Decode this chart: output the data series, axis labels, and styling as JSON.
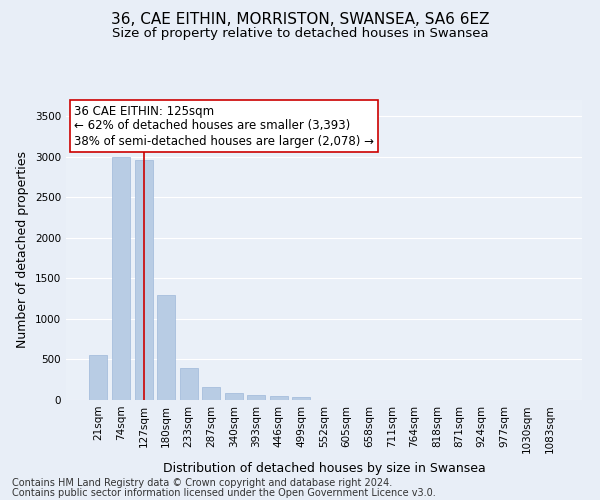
{
  "title": "36, CAE EITHIN, MORRISTON, SWANSEA, SA6 6EZ",
  "subtitle": "Size of property relative to detached houses in Swansea",
  "xlabel": "Distribution of detached houses by size in Swansea",
  "ylabel": "Number of detached properties",
  "footnote1": "Contains HM Land Registry data © Crown copyright and database right 2024.",
  "footnote2": "Contains public sector information licensed under the Open Government Licence v3.0.",
  "categories": [
    "21sqm",
    "74sqm",
    "127sqm",
    "180sqm",
    "233sqm",
    "287sqm",
    "340sqm",
    "393sqm",
    "446sqm",
    "499sqm",
    "552sqm",
    "605sqm",
    "658sqm",
    "711sqm",
    "764sqm",
    "818sqm",
    "871sqm",
    "924sqm",
    "977sqm",
    "1030sqm",
    "1083sqm"
  ],
  "values": [
    550,
    3000,
    2960,
    1300,
    400,
    160,
    90,
    65,
    55,
    40,
    5,
    2,
    1,
    1,
    0,
    0,
    0,
    0,
    0,
    0,
    0
  ],
  "bar_color": "#b8cce4",
  "bar_edge_color": "#9eb8d9",
  "vline_x_index": 2,
  "vline_color": "#cc0000",
  "annotation_line1": "36 CAE EITHIN: 125sqm",
  "annotation_line2": "← 62% of detached houses are smaller (3,393)",
  "annotation_line3": "38% of semi-detached houses are larger (2,078) →",
  "ylim": [
    0,
    3700
  ],
  "yticks": [
    0,
    500,
    1000,
    1500,
    2000,
    2500,
    3000,
    3500
  ],
  "bg_color": "#e8eef7",
  "plot_bg_color": "#eaf0f8",
  "grid_color": "#ffffff",
  "title_fontsize": 11,
  "subtitle_fontsize": 9.5,
  "axis_label_fontsize": 9,
  "tick_fontsize": 7.5,
  "annotation_fontsize": 8.5,
  "footnote_fontsize": 7
}
